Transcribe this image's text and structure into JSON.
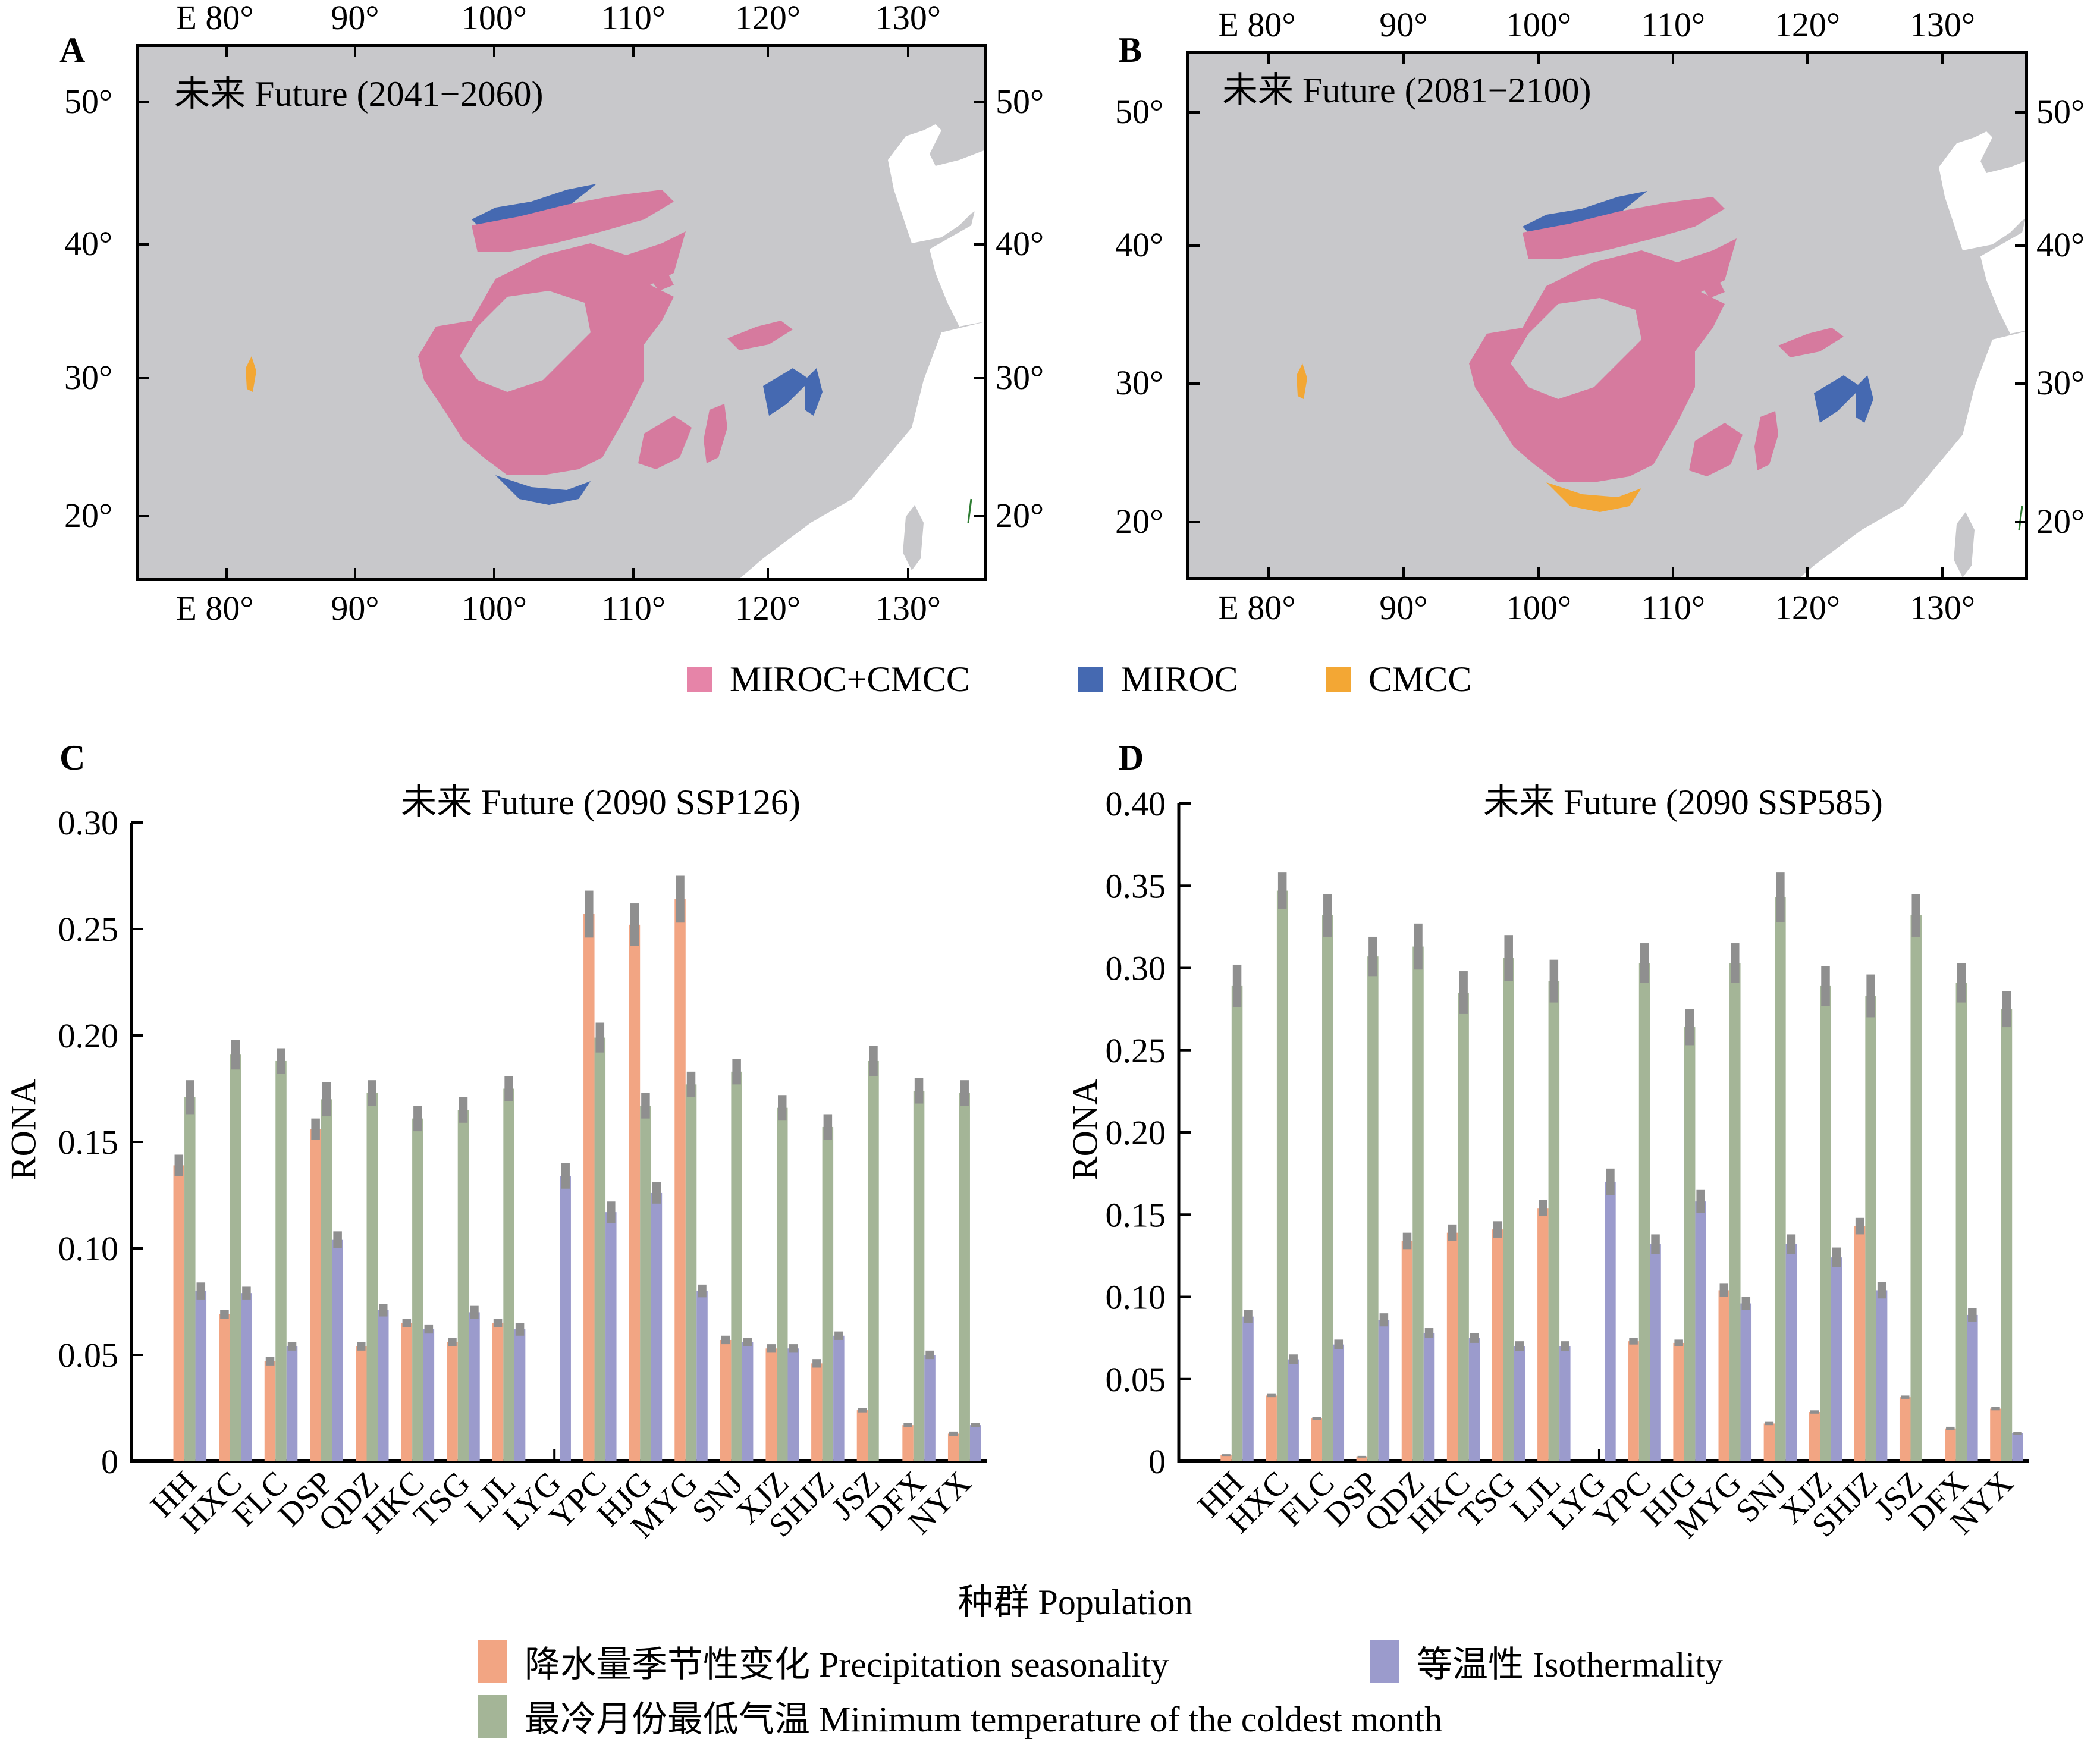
{
  "maps": {
    "legend": [
      {
        "label": "MIROC+CMCC",
        "color": "#e684a8"
      },
      {
        "label": "MIROC",
        "color": "#4569b1"
      },
      {
        "label": "CMCC",
        "color": "#f3a734"
      }
    ],
    "colors": {
      "land": "#c8c8cb",
      "sea": "#ffffff",
      "both": "#d67a9e",
      "miroc": "#4569b1",
      "cmcc": "#f3a734",
      "line": "#2e7d32"
    },
    "lon_ticks": [
      "E 80°",
      "90°",
      "100°",
      "110°",
      "120°",
      "130°"
    ],
    "lat_ticks": [
      "50°",
      "40°",
      "30°",
      "20°"
    ],
    "panels": [
      {
        "letter": "A",
        "title": "未来 Future (2041−2060)"
      },
      {
        "letter": "B",
        "title": "未来 Future (2081−2100)"
      }
    ]
  },
  "chart_data": [
    {
      "type": "bar",
      "panel": "C",
      "title": "未来 Future (2090 SSP126)",
      "xlabel": "种群 Population",
      "ylabel": "RONA",
      "ylim": [
        0,
        0.3
      ],
      "yticks": [
        "0",
        "0.05",
        "0.10",
        "0.15",
        "0.20",
        "0.25",
        "0.30"
      ],
      "ytick_values": [
        0,
        0.05,
        0.1,
        0.15,
        0.2,
        0.25,
        0.3
      ],
      "categories": [
        "HH",
        "HXC",
        "FLC",
        "DSP",
        "QDZ",
        "HKC",
        "TSG",
        "LJL",
        "LYG",
        "YPC",
        "HJG",
        "MYG",
        "SNJ",
        "XJZ",
        "SHJZ",
        "JSZ",
        "DFX",
        "NYX"
      ],
      "series": [
        {
          "name": "降水量季节性变化 Precipitation seasonality",
          "color": "#f2a583",
          "values": [
            0.139,
            0.069,
            0.047,
            0.156,
            0.054,
            0.065,
            0.056,
            0.065,
            null,
            0.257,
            0.252,
            0.264,
            0.057,
            0.053,
            0.046,
            0.024,
            0.017,
            0.013
          ],
          "errors": [
            0.005,
            0.002,
            0.002,
            0.005,
            0.002,
            0.002,
            0.002,
            0.002,
            null,
            0.011,
            0.01,
            0.011,
            0.002,
            0.002,
            0.002,
            0.001,
            0.001,
            0.001
          ]
        },
        {
          "name": "最冷月份最低气温 Minimum temperature of the coldest month",
          "color": "#a4b597",
          "values": [
            0.171,
            0.191,
            0.188,
            0.17,
            0.173,
            0.161,
            0.165,
            0.175,
            null,
            0.199,
            0.167,
            0.177,
            0.183,
            0.166,
            0.157,
            0.188,
            0.174,
            0.173
          ],
          "errors": [
            0.008,
            0.007,
            0.006,
            0.008,
            0.006,
            0.006,
            0.006,
            0.006,
            null,
            0.007,
            0.006,
            0.006,
            0.006,
            0.006,
            0.006,
            0.007,
            0.006,
            0.006
          ]
        },
        {
          "name": "等温性 Isothermality",
          "color": "#9b9bcc",
          "values": [
            0.08,
            0.079,
            0.054,
            0.104,
            0.071,
            0.062,
            0.07,
            0.062,
            0.134,
            0.117,
            0.126,
            0.08,
            0.056,
            0.053,
            0.059,
            null,
            0.05,
            0.017
          ],
          "errors": [
            0.004,
            0.003,
            0.002,
            0.004,
            0.003,
            0.002,
            0.003,
            0.003,
            0.006,
            0.005,
            0.005,
            0.003,
            0.002,
            0.002,
            0.002,
            null,
            0.002,
            0.001
          ]
        }
      ]
    },
    {
      "type": "bar",
      "panel": "D",
      "title": "未来 Future (2090 SSP585)",
      "xlabel": "种群 Population",
      "ylabel": "RONA",
      "ylim": [
        0,
        0.4
      ],
      "yticks": [
        "0",
        "0.05",
        "0.10",
        "0.15",
        "0.20",
        "0.25",
        "0.30",
        "0.35",
        "0.40"
      ],
      "ytick_values": [
        0,
        0.05,
        0.1,
        0.15,
        0.2,
        0.25,
        0.3,
        0.35,
        0.4
      ],
      "categories": [
        "HH",
        "HXC",
        "FLC",
        "DSP",
        "QDZ",
        "HKC",
        "TSG",
        "LJL",
        "LYG",
        "YPC",
        "HJG",
        "MYG",
        "SNJ",
        "XJZ",
        "SHJZ",
        "JSZ",
        "DFX",
        "NYX"
      ],
      "series": [
        {
          "name": "降水量季节性变化 Precipitation seasonality",
          "color": "#f2a583",
          "values": [
            0.004,
            0.04,
            0.026,
            0.003,
            0.134,
            0.139,
            0.141,
            0.154,
            null,
            0.073,
            0.072,
            0.104,
            0.023,
            0.03,
            0.143,
            0.039,
            0.02,
            0.032
          ],
          "errors": [
            0.0003,
            0.001,
            0.001,
            0.0003,
            0.005,
            0.005,
            0.005,
            0.005,
            null,
            0.002,
            0.002,
            0.004,
            0.001,
            0.001,
            0.005,
            0.001,
            0.001,
            0.001
          ]
        },
        {
          "name": "最冷月份最低气温 Minimum temperature of the coldest month",
          "color": "#a4b597",
          "values": [
            0.289,
            0.347,
            0.332,
            0.307,
            0.313,
            0.285,
            0.306,
            0.292,
            null,
            0.303,
            0.264,
            0.303,
            0.343,
            0.289,
            0.283,
            0.332,
            0.291,
            0.275
          ],
          "errors": [
            0.013,
            0.011,
            0.013,
            0.012,
            0.014,
            0.013,
            0.014,
            0.013,
            null,
            0.012,
            0.011,
            0.012,
            0.015,
            0.012,
            0.013,
            0.013,
            0.012,
            0.011
          ]
        },
        {
          "name": "等温性 Isothermality",
          "color": "#9b9bcc",
          "values": [
            0.088,
            0.062,
            0.071,
            0.086,
            0.078,
            0.075,
            0.07,
            0.07,
            0.17,
            0.132,
            0.158,
            0.096,
            0.132,
            0.124,
            0.104,
            null,
            0.089,
            0.017
          ],
          "errors": [
            0.004,
            0.003,
            0.003,
            0.004,
            0.003,
            0.003,
            0.003,
            0.003,
            0.008,
            0.006,
            0.007,
            0.004,
            0.006,
            0.006,
            0.005,
            null,
            0.004,
            0.001
          ]
        }
      ]
    }
  ],
  "bottom_legend": [
    {
      "label": "降水量季节性变化 Precipitation seasonality",
      "color": "#f2a583"
    },
    {
      "label": "等温性 Isothermality",
      "color": "#9b9bcc"
    },
    {
      "label": "最冷月份最低气温 Minimum temperature of the coldest month",
      "color": "#a4b597"
    }
  ],
  "population_label": "种群 Population",
  "error_bar_color": "#8f8f8f"
}
